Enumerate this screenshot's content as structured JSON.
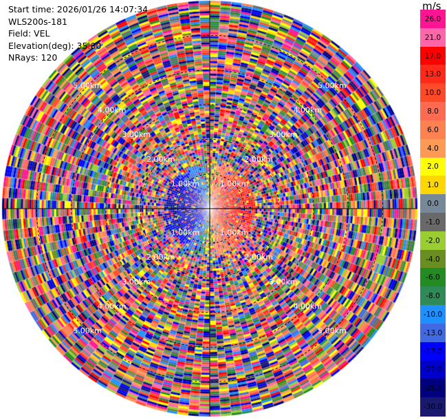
{
  "header": {
    "start_time": "Start time: 2026/01/26 14:07:34",
    "instrument": "WLS200s-181",
    "field": "Field: VEL",
    "elevation": "Elevation(deg): 35.00",
    "nrays": "NRays: 120"
  },
  "chart_data": {
    "type": "heatmap",
    "projection": "polar-ppi",
    "field": "VEL",
    "units": "m/s",
    "elevation_deg": 35.0,
    "n_rays": 120,
    "range_rings_km": [
      1,
      2,
      3,
      4,
      5
    ],
    "range_ring_labels": [
      "1.00km",
      "2.00km",
      "3.00km",
      "4.00km",
      "5.00km"
    ],
    "max_range_km": 6.0,
    "pattern": "Coherent dipole near center (negative velocities to the west shown in blue, positive velocities to the east shown in red/orange), noisy random velocities at all other ranges.",
    "coherent_range_km": 1.3,
    "colorbar": {
      "label": "m/s",
      "ticks": [
        "26.0",
        "21.0",
        "17.0",
        "13.0",
        "10.0",
        "8.0",
        "6.0",
        "4.0",
        "2.0",
        "1.0",
        "0.0",
        "-1.0",
        "-2.0",
        "-4.0",
        "-6.0",
        "-8.0",
        "-10.0",
        "-13.0",
        "-17.0",
        "-21.0",
        "-26.0",
        "-30.0"
      ],
      "colors": [
        "#ff1493",
        "#ff66aa",
        "#ff0000",
        "#ff2a1a",
        "#ff4a2a",
        "#ff6a50",
        "#ff8050",
        "#ff9a55",
        "#ffff00",
        "#ffd700",
        "#778899",
        "#696969",
        "#9acd32",
        "#6b8e23",
        "#228b22",
        "#2e8b57",
        "#1e90ff",
        "#4169e1",
        "#0000ff",
        "#0000cd",
        "#000080",
        "#191970"
      ]
    }
  }
}
